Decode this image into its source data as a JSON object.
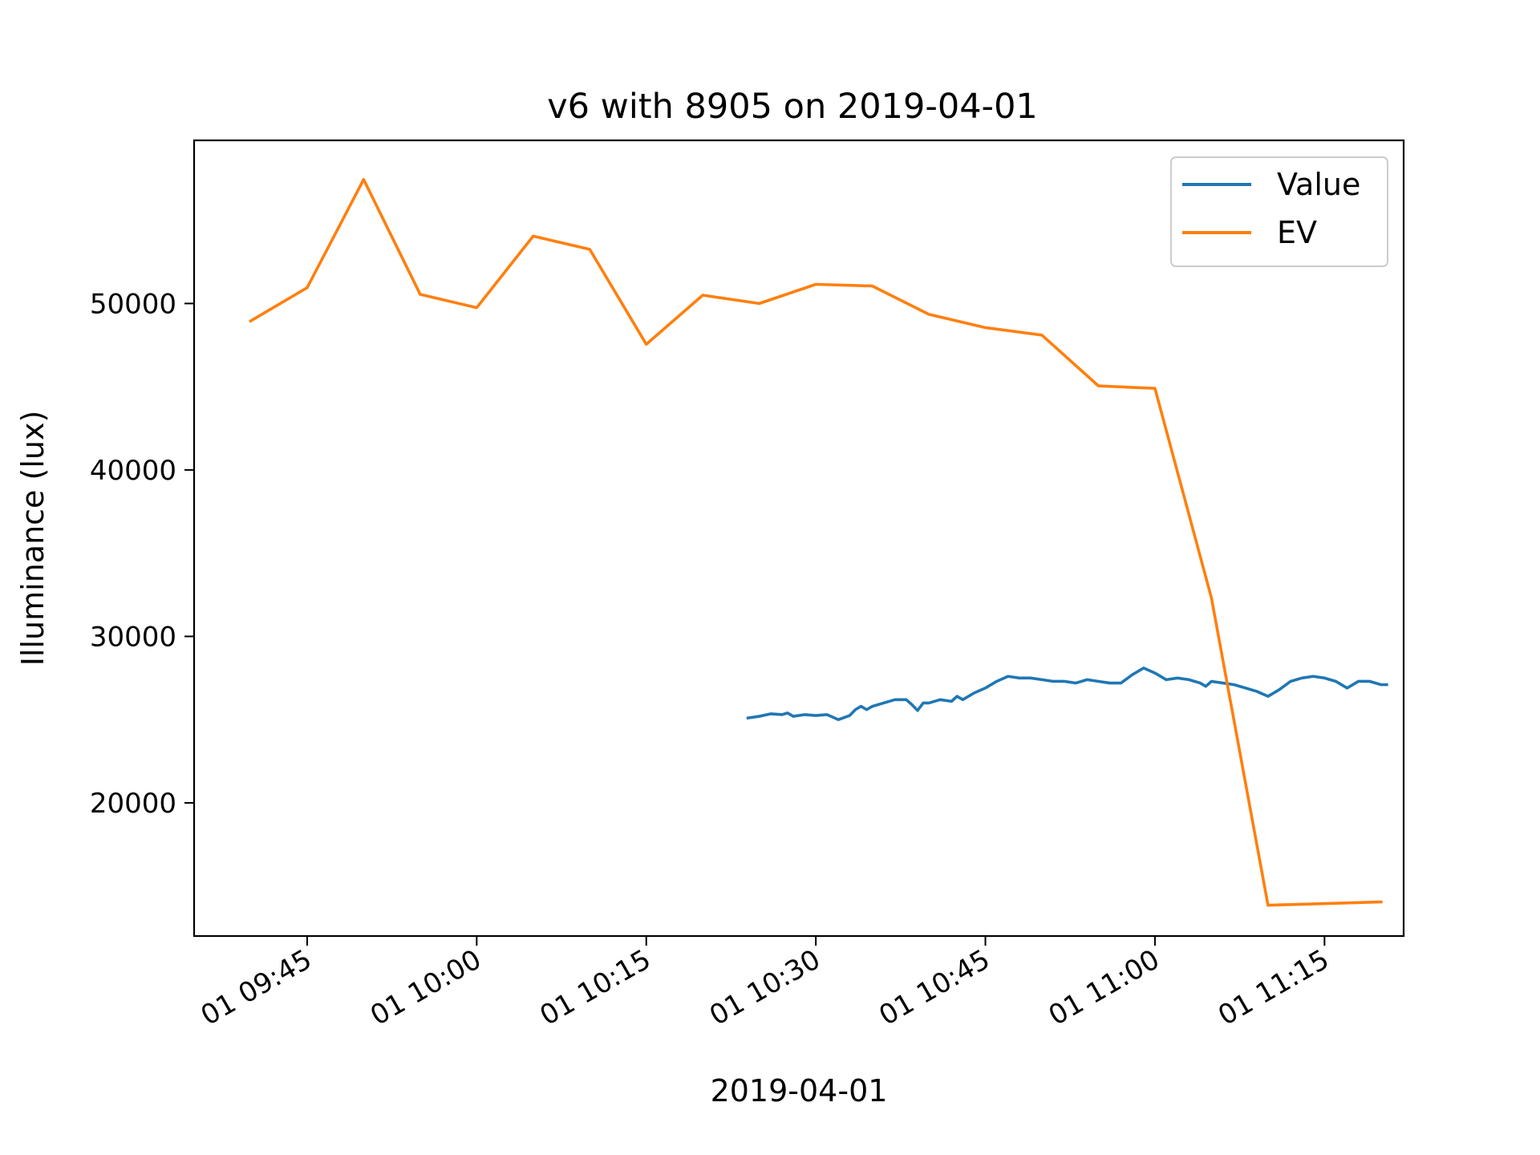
{
  "chart_data": {
    "type": "line",
    "title": "v6 with 8905 on 2019-04-01",
    "xlabel": "2019-04-01",
    "ylabel": "Illuminance (lux)",
    "x_axis_type": "datetime",
    "xlim": [
      "2019-04-01 09:35",
      "2019-04-01 11:22"
    ],
    "ylim": [
      12000,
      59800
    ],
    "x_ticks": [
      {
        "value": "2019-04-01 09:45",
        "label": "01 09:45"
      },
      {
        "value": "2019-04-01 10:00",
        "label": "01 10:00"
      },
      {
        "value": "2019-04-01 10:15",
        "label": "01 10:15"
      },
      {
        "value": "2019-04-01 10:30",
        "label": "01 10:30"
      },
      {
        "value": "2019-04-01 10:45",
        "label": "01 10:45"
      },
      {
        "value": "2019-04-01 11:00",
        "label": "01 11:00"
      },
      {
        "value": "2019-04-01 11:15",
        "label": "01 11:15"
      }
    ],
    "y_ticks": [
      {
        "value": 20000,
        "label": "20000"
      },
      {
        "value": 30000,
        "label": "30000"
      },
      {
        "value": 40000,
        "label": "40000"
      },
      {
        "value": 50000,
        "label": "50000"
      }
    ],
    "grid": false,
    "legend_position": "top-right",
    "series": [
      {
        "name": "Value",
        "color": "#1f77b4",
        "points": [
          [
            "2019-04-01 10:24",
            25100
          ],
          [
            "2019-04-01 10:25",
            25200
          ],
          [
            "2019-04-01 10:26",
            25350
          ],
          [
            "2019-04-01 10:27",
            25300
          ],
          [
            "2019-04-01 10:27:30",
            25400
          ],
          [
            "2019-04-01 10:28",
            25200
          ],
          [
            "2019-04-01 10:29",
            25300
          ],
          [
            "2019-04-01 10:30",
            25250
          ],
          [
            "2019-04-01 10:31",
            25300
          ],
          [
            "2019-04-01 10:32",
            25000
          ],
          [
            "2019-04-01 10:33",
            25250
          ],
          [
            "2019-04-01 10:33:30",
            25600
          ],
          [
            "2019-04-01 10:34",
            25800
          ],
          [
            "2019-04-01 10:34:30",
            25600
          ],
          [
            "2019-04-01 10:35",
            25800
          ],
          [
            "2019-04-01 10:36",
            26000
          ],
          [
            "2019-04-01 10:37",
            26200
          ],
          [
            "2019-04-01 10:38",
            26200
          ],
          [
            "2019-04-01 10:38:30",
            25900
          ],
          [
            "2019-04-01 10:39",
            25550
          ],
          [
            "2019-04-01 10:39:30",
            26000
          ],
          [
            "2019-04-01 10:40",
            26000
          ],
          [
            "2019-04-01 10:41",
            26200
          ],
          [
            "2019-04-01 10:42",
            26100
          ],
          [
            "2019-04-01 10:42:30",
            26400
          ],
          [
            "2019-04-01 10:43",
            26200
          ],
          [
            "2019-04-01 10:44",
            26600
          ],
          [
            "2019-04-01 10:45",
            26900
          ],
          [
            "2019-04-01 10:46",
            27300
          ],
          [
            "2019-04-01 10:47",
            27600
          ],
          [
            "2019-04-01 10:48",
            27500
          ],
          [
            "2019-04-01 10:49",
            27500
          ],
          [
            "2019-04-01 10:50",
            27400
          ],
          [
            "2019-04-01 10:51",
            27300
          ],
          [
            "2019-04-01 10:52",
            27300
          ],
          [
            "2019-04-01 10:53",
            27200
          ],
          [
            "2019-04-01 10:54",
            27400
          ],
          [
            "2019-04-01 10:55",
            27300
          ],
          [
            "2019-04-01 10:56",
            27200
          ],
          [
            "2019-04-01 10:57",
            27200
          ],
          [
            "2019-04-01 10:58",
            27700
          ],
          [
            "2019-04-01 10:59",
            28100
          ],
          [
            "2019-04-01 11:00",
            27800
          ],
          [
            "2019-04-01 11:01",
            27400
          ],
          [
            "2019-04-01 11:02",
            27500
          ],
          [
            "2019-04-01 11:03",
            27400
          ],
          [
            "2019-04-01 11:04",
            27200
          ],
          [
            "2019-04-01 11:04:30",
            27000
          ],
          [
            "2019-04-01 11:05",
            27300
          ],
          [
            "2019-04-01 11:06",
            27200
          ],
          [
            "2019-04-01 11:07",
            27100
          ],
          [
            "2019-04-01 11:08",
            26900
          ],
          [
            "2019-04-01 11:09",
            26700
          ],
          [
            "2019-04-01 11:10",
            26400
          ],
          [
            "2019-04-01 11:11",
            26800
          ],
          [
            "2019-04-01 11:12",
            27300
          ],
          [
            "2019-04-01 11:13",
            27500
          ],
          [
            "2019-04-01 11:14",
            27600
          ],
          [
            "2019-04-01 11:15",
            27500
          ],
          [
            "2019-04-01 11:16",
            27300
          ],
          [
            "2019-04-01 11:17",
            26900
          ],
          [
            "2019-04-01 11:18",
            27300
          ],
          [
            "2019-04-01 11:19",
            27300
          ],
          [
            "2019-04-01 11:20",
            27100
          ],
          [
            "2019-04-01 11:20:30",
            27100
          ]
        ]
      },
      {
        "name": "EV",
        "color": "#ff7f0e",
        "points": [
          [
            "2019-04-01 09:40",
            48950
          ],
          [
            "2019-04-01 09:45",
            50950
          ],
          [
            "2019-04-01 09:50",
            57450
          ],
          [
            "2019-04-01 09:55",
            50550
          ],
          [
            "2019-04-01 10:00",
            49750
          ],
          [
            "2019-04-01 10:05",
            54050
          ],
          [
            "2019-04-01 10:10",
            53250
          ],
          [
            "2019-04-01 10:15",
            47550
          ],
          [
            "2019-04-01 10:20",
            50500
          ],
          [
            "2019-04-01 10:25",
            50000
          ],
          [
            "2019-04-01 10:30",
            51150
          ],
          [
            "2019-04-01 10:35",
            51050
          ],
          [
            "2019-04-01 10:40",
            49350
          ],
          [
            "2019-04-01 10:45",
            48550
          ],
          [
            "2019-04-01 10:50",
            48100
          ],
          [
            "2019-04-01 10:55",
            45050
          ],
          [
            "2019-04-01 11:00",
            44900
          ],
          [
            "2019-04-01 11:05",
            32300
          ],
          [
            "2019-04-01 11:10",
            13850
          ],
          [
            "2019-04-01 11:20",
            14050
          ]
        ]
      }
    ]
  }
}
